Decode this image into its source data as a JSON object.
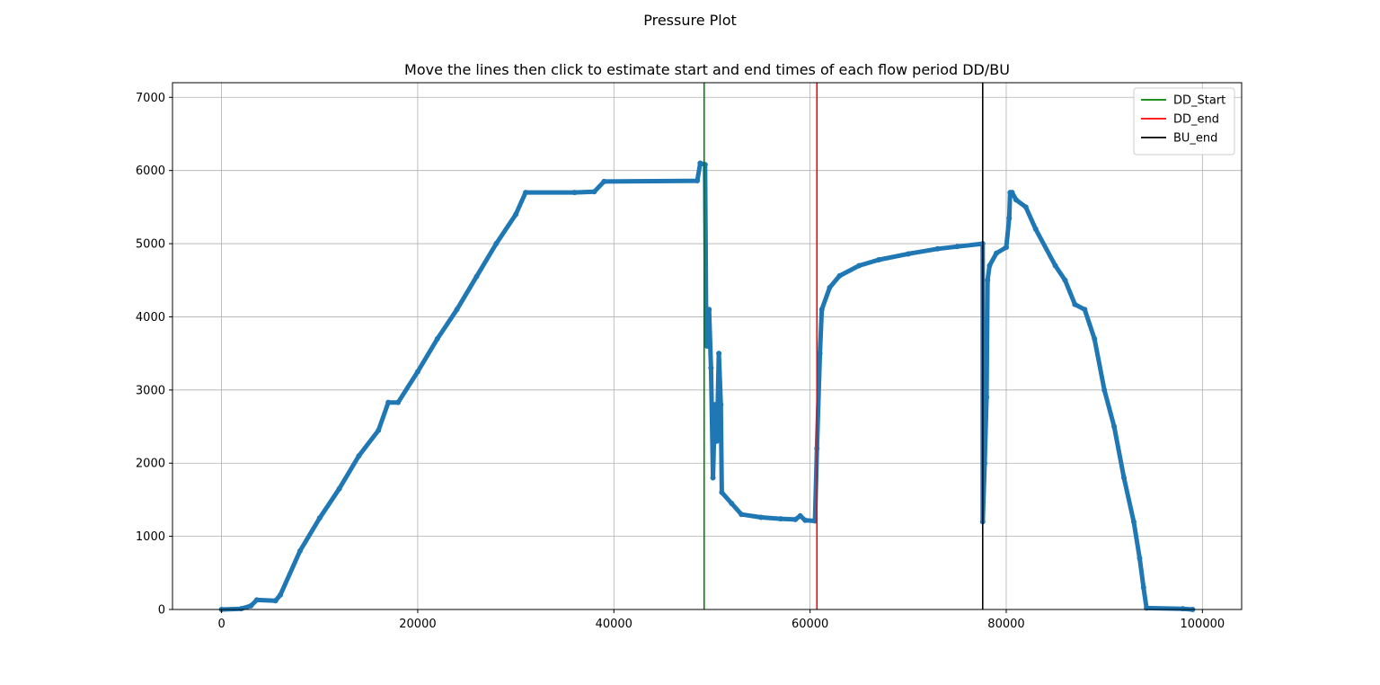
{
  "figure": {
    "suptitle": "Pressure Plot"
  },
  "chart_data": {
    "type": "scatter",
    "title": "Move the lines then click to estimate start and end times of each flow period DD/BU",
    "xlabel": "",
    "ylabel": "",
    "xlim": [
      -5000,
      104000
    ],
    "ylim": [
      0,
      7200
    ],
    "xticks": [
      0,
      20000,
      40000,
      60000,
      80000,
      100000
    ],
    "yticks": [
      0,
      1000,
      2000,
      3000,
      4000,
      5000,
      6000,
      7000
    ],
    "grid": true,
    "legend_position": "top-right",
    "series": [
      {
        "name": "",
        "color": "#1f77b4",
        "points": [
          [
            0,
            0
          ],
          [
            2000,
            10
          ],
          [
            3000,
            50
          ],
          [
            3600,
            130
          ],
          [
            5500,
            120
          ],
          [
            6000,
            200
          ],
          [
            8000,
            800
          ],
          [
            10000,
            1250
          ],
          [
            12000,
            1650
          ],
          [
            14000,
            2100
          ],
          [
            16000,
            2450
          ],
          [
            17000,
            2830
          ],
          [
            18000,
            2830
          ],
          [
            20000,
            3250
          ],
          [
            22000,
            3700
          ],
          [
            24000,
            4100
          ],
          [
            26000,
            4550
          ],
          [
            28000,
            5000
          ],
          [
            30000,
            5400
          ],
          [
            31000,
            5700
          ],
          [
            36000,
            5700
          ],
          [
            38000,
            5710
          ],
          [
            39000,
            5850
          ],
          [
            48500,
            5860
          ],
          [
            48800,
            6100
          ],
          [
            49300,
            6080
          ],
          [
            49400,
            4100
          ],
          [
            49500,
            3600
          ],
          [
            49700,
            4100
          ],
          [
            49900,
            3300
          ],
          [
            50100,
            1800
          ],
          [
            50300,
            2800
          ],
          [
            50500,
            2300
          ],
          [
            50700,
            3500
          ],
          [
            50900,
            2800
          ],
          [
            51000,
            1600
          ],
          [
            52000,
            1450
          ],
          [
            53000,
            1300
          ],
          [
            55000,
            1260
          ],
          [
            57000,
            1240
          ],
          [
            58500,
            1230
          ],
          [
            59000,
            1280
          ],
          [
            59500,
            1220
          ],
          [
            60500,
            1210
          ],
          [
            60700,
            2200
          ],
          [
            61000,
            3500
          ],
          [
            61200,
            4100
          ],
          [
            62000,
            4400
          ],
          [
            63000,
            4560
          ],
          [
            65000,
            4700
          ],
          [
            67000,
            4780
          ],
          [
            70000,
            4860
          ],
          [
            73000,
            4930
          ],
          [
            75000,
            4960
          ],
          [
            77600,
            5000
          ],
          [
            77600,
            1200
          ],
          [
            77800,
            2000
          ],
          [
            78000,
            2900
          ],
          [
            78100,
            4500
          ],
          [
            78300,
            4700
          ],
          [
            79000,
            4870
          ],
          [
            80000,
            4950
          ],
          [
            80300,
            5350
          ],
          [
            80400,
            5700
          ],
          [
            80600,
            5700
          ],
          [
            81000,
            5600
          ],
          [
            82000,
            5500
          ],
          [
            83000,
            5200
          ],
          [
            85000,
            4700
          ],
          [
            86000,
            4500
          ],
          [
            87000,
            4170
          ],
          [
            88000,
            4100
          ],
          [
            89000,
            3700
          ],
          [
            90000,
            3000
          ],
          [
            91000,
            2500
          ],
          [
            92000,
            1800
          ],
          [
            93000,
            1200
          ],
          [
            93600,
            700
          ],
          [
            94000,
            300
          ],
          [
            94300,
            20
          ],
          [
            98000,
            10
          ],
          [
            99000,
            0
          ]
        ]
      }
    ],
    "vlines": [
      {
        "name": "DD_Start",
        "x": 49200,
        "color": "#008000"
      },
      {
        "name": "DD_end",
        "x": 60700,
        "color": "#ff0000"
      },
      {
        "name": "BU_end",
        "x": 77600,
        "color": "#000000"
      }
    ]
  }
}
